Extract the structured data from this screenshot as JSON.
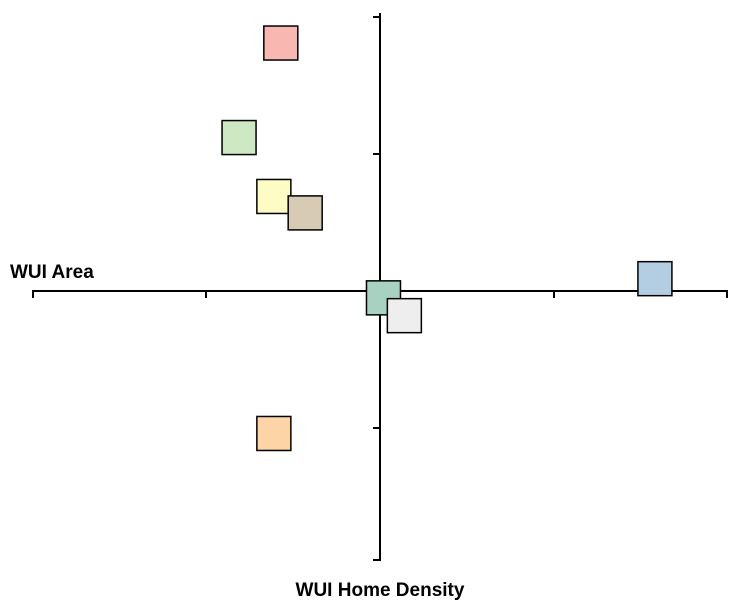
{
  "chart_data": {
    "type": "scatter",
    "title": "",
    "xlabel": "WUI Area",
    "ylabel": "WUI Home Density",
    "xlim": [
      -2,
      2
    ],
    "ylim": [
      -2,
      2
    ],
    "xticks": [
      -2,
      -1,
      0,
      1,
      2
    ],
    "yticks": [
      -2,
      -1,
      0,
      1,
      2
    ],
    "grid": false,
    "legend": "none",
    "marker": "square",
    "points": [
      {
        "x": -0.57,
        "y": 1.81,
        "color": "#f9b7b1"
      },
      {
        "x": -0.81,
        "y": 1.12,
        "color": "#cde8c3"
      },
      {
        "x": -0.61,
        "y": 0.69,
        "color": "#fdfcc4"
      },
      {
        "x": -0.43,
        "y": 0.57,
        "color": "#d8cbb5"
      },
      {
        "x": 0.02,
        "y": -0.05,
        "color": "#a9d1c1"
      },
      {
        "x": 0.14,
        "y": -0.18,
        "color": "#eeeeee"
      },
      {
        "x": 1.58,
        "y": 0.09,
        "color": "#b3cde3"
      },
      {
        "x": -0.61,
        "y": -1.04,
        "color": "#fdd4a6"
      }
    ]
  }
}
